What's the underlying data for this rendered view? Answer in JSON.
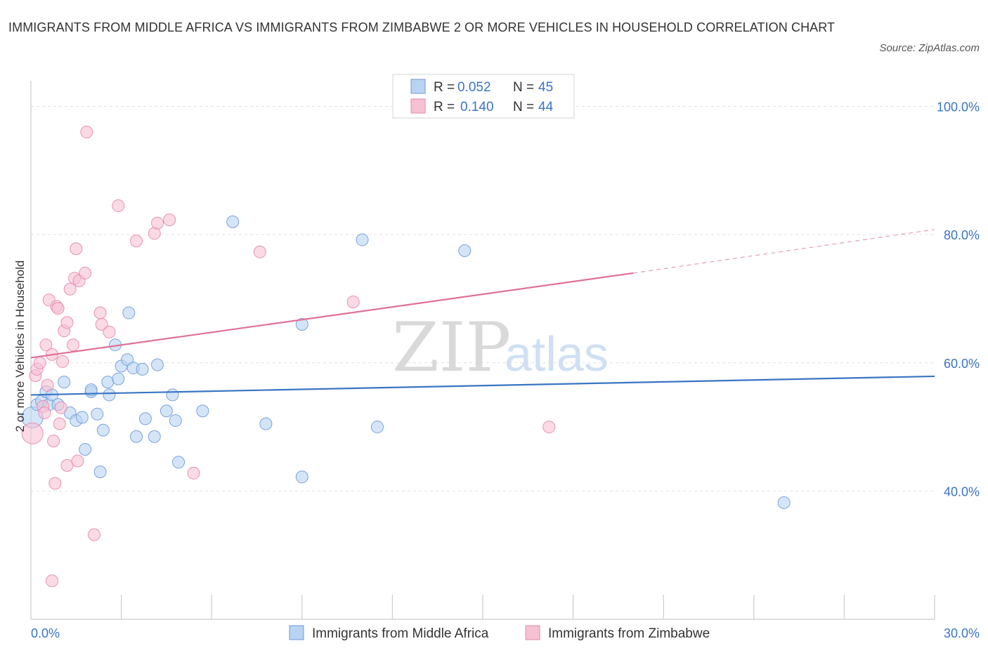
{
  "title": "IMMIGRANTS FROM MIDDLE AFRICA VS IMMIGRANTS FROM ZIMBABWE 2 OR MORE VEHICLES IN HOUSEHOLD CORRELATION CHART",
  "source": "Source: ZipAtlas.com",
  "watermark": {
    "zip": "ZIP",
    "atlas": "atlas"
  },
  "colors": {
    "blue": "#3a74c4",
    "blue_fill": "#b9d3f3",
    "pink": "#e07098",
    "pink_fill": "#f6c1d3",
    "grid": "#e0e0e0"
  },
  "legend_top": {
    "rows": [
      {
        "r_label": "R =",
        "r_value": "0.052",
        "n_label": "N =",
        "n_value": "45"
      },
      {
        "r_label": "R =",
        "r_value": "0.140",
        "n_label": "N =",
        "n_value": "44"
      }
    ]
  },
  "chart_data": {
    "type": "scatter",
    "title": "IMMIGRANTS FROM MIDDLE AFRICA VS IMMIGRANTS FROM ZIMBABWE 2 OR MORE VEHICLES IN HOUSEHOLD CORRELATION CHART",
    "xlabel": "",
    "ylabel": "2 or more Vehicles in Household",
    "xlim": [
      0,
      30
    ],
    "ylim": [
      20,
      104
    ],
    "x_tick_labels": [
      "0.0%",
      "30.0%"
    ],
    "y_ticks": [
      40,
      60,
      80,
      100
    ],
    "y_tick_labels": [
      "40.0%",
      "60.0%",
      "80.0%",
      "100.0%"
    ],
    "grid": true,
    "legend": [
      "Immigrants from Middle Africa",
      "Immigrants from Zimbabwe"
    ],
    "series": [
      {
        "name": "Immigrants from Middle Africa",
        "color": "#3a74c4",
        "trend": {
          "x0": 0,
          "y0": 55.0,
          "x1": 30,
          "y1": 57.9
        },
        "points": [
          [
            0.05,
            51.5
          ],
          [
            0.2,
            53.5
          ],
          [
            0.35,
            54.0
          ],
          [
            0.5,
            55.5
          ],
          [
            0.6,
            53.5
          ],
          [
            0.7,
            55.0
          ],
          [
            0.9,
            53.5
          ],
          [
            1.1,
            57.0
          ],
          [
            1.3,
            52.2
          ],
          [
            1.5,
            51.0
          ],
          [
            1.7,
            51.5
          ],
          [
            1.8,
            46.5
          ],
          [
            2.0,
            55.5
          ],
          [
            2.0,
            55.8
          ],
          [
            2.2,
            52.0
          ],
          [
            2.3,
            43.0
          ],
          [
            2.4,
            49.5
          ],
          [
            2.55,
            57.0
          ],
          [
            2.6,
            55.0
          ],
          [
            2.8,
            62.8
          ],
          [
            2.9,
            57.5
          ],
          [
            3.0,
            59.5
          ],
          [
            3.2,
            60.5
          ],
          [
            3.25,
            67.8
          ],
          [
            3.4,
            59.2
          ],
          [
            3.5,
            48.5
          ],
          [
            3.7,
            59.0
          ],
          [
            3.8,
            51.3
          ],
          [
            4.1,
            48.5
          ],
          [
            4.2,
            59.7
          ],
          [
            4.5,
            52.5
          ],
          [
            4.7,
            55.0
          ],
          [
            4.8,
            51.0
          ],
          [
            4.9,
            44.5
          ],
          [
            5.7,
            52.5
          ],
          [
            6.7,
            82.0
          ],
          [
            7.8,
            50.5
          ],
          [
            9.0,
            66.0
          ],
          [
            9.0,
            42.2
          ],
          [
            11.0,
            79.2
          ],
          [
            11.5,
            50.0
          ],
          [
            14.4,
            77.5
          ],
          [
            25.0,
            38.2
          ]
        ]
      },
      {
        "name": "Immigrants from Zimbabwe",
        "color": "#e07098",
        "trend": {
          "x0": 0,
          "y0": 60.8,
          "x1": 20,
          "y1": 74.0,
          "dash_x1": 30,
          "dash_y1": 80.8
        },
        "points": [
          [
            0.05,
            49.0
          ],
          [
            0.15,
            58.0
          ],
          [
            0.2,
            59.0
          ],
          [
            0.3,
            60.0
          ],
          [
            0.4,
            53.2
          ],
          [
            0.45,
            52.2
          ],
          [
            0.5,
            62.8
          ],
          [
            0.55,
            56.5
          ],
          [
            0.6,
            69.8
          ],
          [
            0.7,
            61.3
          ],
          [
            0.7,
            26.0
          ],
          [
            0.75,
            47.8
          ],
          [
            0.8,
            41.2
          ],
          [
            0.85,
            68.8
          ],
          [
            0.9,
            68.5
          ],
          [
            0.95,
            50.5
          ],
          [
            1.0,
            53.0
          ],
          [
            1.05,
            60.2
          ],
          [
            1.1,
            65.0
          ],
          [
            1.2,
            44.0
          ],
          [
            1.2,
            66.3
          ],
          [
            1.3,
            71.5
          ],
          [
            1.4,
            62.8
          ],
          [
            1.45,
            73.2
          ],
          [
            1.5,
            77.8
          ],
          [
            1.55,
            44.7
          ],
          [
            1.6,
            72.8
          ],
          [
            1.8,
            74.0
          ],
          [
            1.85,
            96.0
          ],
          [
            2.1,
            33.2
          ],
          [
            2.3,
            67.8
          ],
          [
            2.35,
            66.0
          ],
          [
            2.6,
            64.8
          ],
          [
            2.9,
            84.5
          ],
          [
            3.5,
            79.0
          ],
          [
            4.1,
            80.2
          ],
          [
            4.2,
            81.8
          ],
          [
            4.6,
            82.3
          ],
          [
            5.4,
            42.8
          ],
          [
            7.6,
            77.3
          ],
          [
            10.7,
            69.5
          ],
          [
            17.2,
            50.0
          ]
        ]
      }
    ]
  },
  "bottom_legend": [
    {
      "label": "Immigrants from Middle Africa"
    },
    {
      "label": "Immigrants from Zimbabwe"
    }
  ]
}
